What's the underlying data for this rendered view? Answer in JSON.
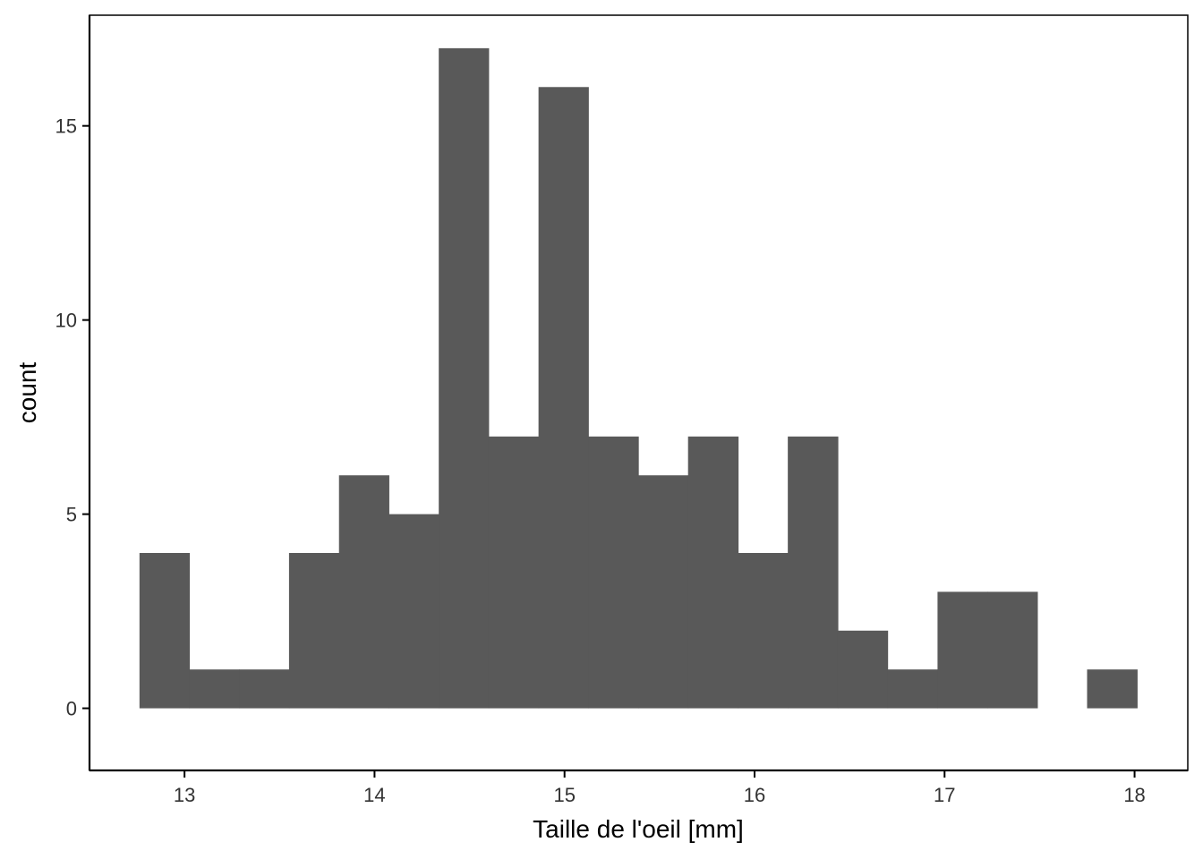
{
  "chart_data": {
    "type": "bar",
    "title": "",
    "xlabel": "Taille de l'oeil  [mm]",
    "ylabel": "count",
    "xlim": [
      12.5,
      18.28
    ],
    "ylim": [
      -1.6,
      17.85
    ],
    "bin_width": 0.2625,
    "bins": [
      {
        "x_start": 12.763,
        "x_end": 13.025,
        "count": 4
      },
      {
        "x_start": 13.025,
        "x_end": 13.288,
        "count": 1
      },
      {
        "x_start": 13.288,
        "x_end": 13.55,
        "count": 1
      },
      {
        "x_start": 13.55,
        "x_end": 13.813,
        "count": 4
      },
      {
        "x_start": 13.813,
        "x_end": 14.075,
        "count": 6
      },
      {
        "x_start": 14.075,
        "x_end": 14.338,
        "count": 5
      },
      {
        "x_start": 14.338,
        "x_end": 14.6,
        "count": 17
      },
      {
        "x_start": 14.6,
        "x_end": 14.863,
        "count": 7
      },
      {
        "x_start": 14.863,
        "x_end": 15.125,
        "count": 16
      },
      {
        "x_start": 15.125,
        "x_end": 15.388,
        "count": 7
      },
      {
        "x_start": 15.388,
        "x_end": 15.65,
        "count": 6
      },
      {
        "x_start": 15.65,
        "x_end": 15.913,
        "count": 7
      },
      {
        "x_start": 15.913,
        "x_end": 16.175,
        "count": 4
      },
      {
        "x_start": 16.175,
        "x_end": 16.438,
        "count": 7
      },
      {
        "x_start": 16.438,
        "x_end": 16.7,
        "count": 2
      },
      {
        "x_start": 16.7,
        "x_end": 16.963,
        "count": 1
      },
      {
        "x_start": 16.963,
        "x_end": 17.225,
        "count": 3
      },
      {
        "x_start": 17.225,
        "x_end": 17.488,
        "count": 3
      },
      {
        "x_start": 17.488,
        "x_end": 17.75,
        "count": 0
      },
      {
        "x_start": 17.75,
        "x_end": 18.013,
        "count": 1
      }
    ],
    "x_ticks": [
      {
        "value": 13,
        "label": "13"
      },
      {
        "value": 14,
        "label": "14"
      },
      {
        "value": 15,
        "label": "15"
      },
      {
        "value": 16,
        "label": "16"
      },
      {
        "value": 17,
        "label": "17"
      },
      {
        "value": 18,
        "label": "18"
      }
    ],
    "y_ticks": [
      {
        "value": 0,
        "label": "0"
      },
      {
        "value": 5,
        "label": "5"
      },
      {
        "value": 10,
        "label": "10"
      },
      {
        "value": 15,
        "label": "15"
      }
    ],
    "grid": false,
    "legend": "none",
    "bar_color": "#595959",
    "axis_color": "#000000",
    "tick_label_color": "#333333"
  }
}
